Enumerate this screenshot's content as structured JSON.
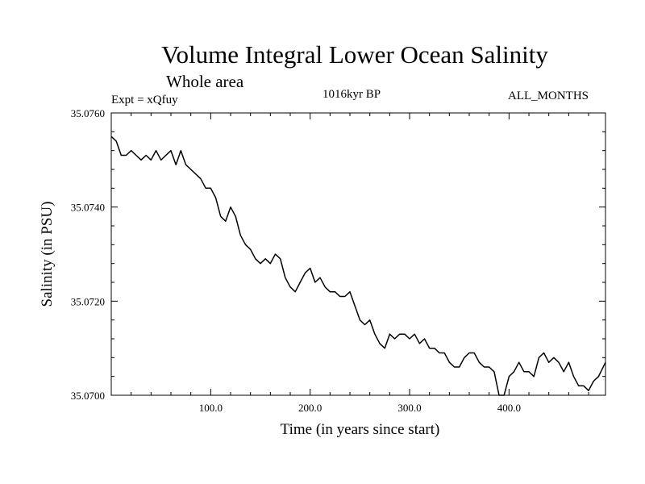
{
  "header": {
    "title": "Volume Integral Lower Ocean Salinity",
    "subtitle": "Whole area",
    "expt_label": "Expt = xQfuy",
    "period_label": "1016kyr BP",
    "months_label": "ALL_MONTHS"
  },
  "chart_data": {
    "type": "line",
    "title": "Volume Integral Lower Ocean Salinity",
    "subtitle": "Whole area",
    "xlabel": "Time (in years since start)",
    "ylabel": "Salinity (in PSU)",
    "xlim": [
      0,
      497
    ],
    "ylim": [
      35.07,
      35.076
    ],
    "x_ticks": [
      100,
      200,
      300,
      400
    ],
    "x_tick_labels": [
      "100.0",
      "200.0",
      "300.0",
      "400.0"
    ],
    "y_ticks": [
      35.07,
      35.072,
      35.074,
      35.076
    ],
    "y_tick_labels": [
      "35.0700",
      "35.0720",
      "35.0740",
      "35.0760"
    ],
    "grid": false,
    "series": [
      {
        "name": "Lower ocean salinity",
        "x": [
          0,
          5,
          10,
          15,
          20,
          25,
          30,
          35,
          40,
          45,
          50,
          55,
          60,
          65,
          70,
          75,
          80,
          85,
          90,
          95,
          100,
          105,
          110,
          115,
          120,
          125,
          130,
          135,
          140,
          145,
          150,
          155,
          160,
          165,
          170,
          175,
          180,
          185,
          190,
          195,
          200,
          205,
          210,
          215,
          220,
          225,
          230,
          235,
          240,
          245,
          250,
          255,
          260,
          265,
          270,
          275,
          280,
          285,
          290,
          295,
          300,
          305,
          310,
          315,
          320,
          325,
          330,
          335,
          340,
          345,
          350,
          355,
          360,
          365,
          370,
          375,
          380,
          385,
          390,
          395,
          400,
          405,
          410,
          415,
          420,
          425,
          430,
          435,
          440,
          445,
          450,
          455,
          460,
          465,
          470,
          475,
          480,
          485,
          490,
          497
        ],
        "values": [
          35.0755,
          35.0754,
          35.0751,
          35.0751,
          35.0752,
          35.0751,
          35.075,
          35.0751,
          35.075,
          35.0752,
          35.075,
          35.0751,
          35.0752,
          35.0749,
          35.0752,
          35.0749,
          35.0748,
          35.0747,
          35.0746,
          35.0744,
          35.0744,
          35.0742,
          35.0738,
          35.0737,
          35.074,
          35.0738,
          35.0734,
          35.0732,
          35.0731,
          35.0729,
          35.0728,
          35.0729,
          35.0728,
          35.073,
          35.0729,
          35.0725,
          35.0723,
          35.0722,
          35.0724,
          35.0726,
          35.0727,
          35.0724,
          35.0725,
          35.0723,
          35.0722,
          35.0722,
          35.0721,
          35.0721,
          35.0722,
          35.0719,
          35.0716,
          35.0715,
          35.0716,
          35.0713,
          35.0711,
          35.071,
          35.0713,
          35.0712,
          35.0713,
          35.0713,
          35.0712,
          35.0713,
          35.0711,
          35.0712,
          35.071,
          35.071,
          35.0709,
          35.0709,
          35.0707,
          35.0706,
          35.0706,
          35.0708,
          35.0709,
          35.0709,
          35.0707,
          35.0706,
          35.0706,
          35.0705,
          35.07,
          35.07,
          35.0704,
          35.0705,
          35.0707,
          35.0705,
          35.0705,
          35.0704,
          35.0708,
          35.0709,
          35.0707,
          35.0708,
          35.0707,
          35.0705,
          35.0707,
          35.0704,
          35.0702,
          35.0702,
          35.0701,
          35.0703,
          35.0704,
          35.0707
        ]
      }
    ]
  }
}
